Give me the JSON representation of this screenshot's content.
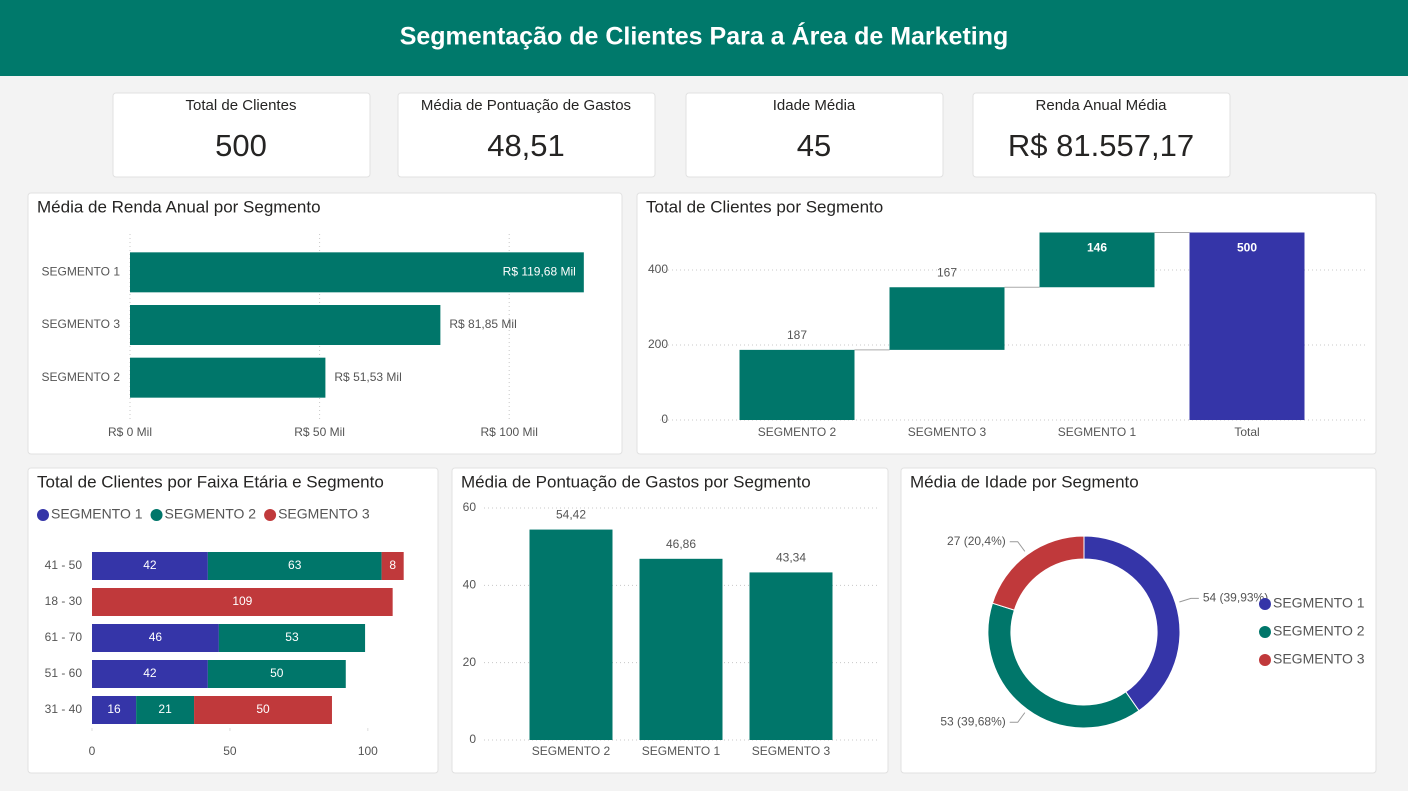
{
  "header": {
    "title": "Segmentação de Clientes Para a Área de Marketing"
  },
  "kpis": [
    {
      "label": "Total de Clientes",
      "value": "500"
    },
    {
      "label": "Média de Pontuação de Gastos",
      "value": "48,51"
    },
    {
      "label": "Idade Média",
      "value": "45"
    },
    {
      "label": "Renda Anual Média",
      "value": "R$ 81.557,17"
    }
  ],
  "chart_data": [
    {
      "type": "hbar",
      "title": "Média de Renda Anual por Segmento",
      "categories": [
        "SEGMENTO 1",
        "SEGMENTO 3",
        "SEGMENTO 2"
      ],
      "values": [
        119680,
        81850,
        51530
      ],
      "value_labels": [
        "R$ 119,68 Mil",
        "R$ 81,85 Mil",
        "R$ 51,53 Mil"
      ],
      "color": "#00766a",
      "xlim": [
        0,
        125000
      ],
      "xticks": [
        {
          "value": 0,
          "label": "R$ 0 Mil"
        },
        {
          "value": 50000,
          "label": "R$ 50 Mil"
        },
        {
          "value": 100000,
          "label": "R$ 100 Mil"
        }
      ],
      "grid": true
    },
    {
      "type": "waterfall",
      "title": "Total de Clientes por Segmento",
      "categories": [
        "SEGMENTO 2",
        "SEGMENTO 3",
        "SEGMENTO 1",
        "Total"
      ],
      "values": [
        187,
        167,
        146,
        500
      ],
      "color": "#00766a",
      "total_color": "#3535a8",
      "ylim": [
        0,
        500
      ],
      "yticks": [
        0,
        200,
        400
      ],
      "grid": true
    },
    {
      "type": "stacked-hbar",
      "title": "Total de Clientes por Faixa Etária e Segmento",
      "categories": [
        "41 - 50",
        "18 - 30",
        "61 - 70",
        "51 - 60",
        "31 - 40"
      ],
      "series": [
        {
          "name": "SEGMENTO 1",
          "color": "#3535a8",
          "values": [
            42,
            null,
            46,
            42,
            16
          ]
        },
        {
          "name": "SEGMENTO 2",
          "color": "#00766a",
          "values": [
            63,
            null,
            53,
            50,
            21
          ]
        },
        {
          "name": "SEGMENTO 3",
          "color": "#c0393b",
          "values": [
            8,
            109,
            null,
            null,
            50
          ]
        }
      ],
      "xlim": [
        0,
        120
      ],
      "xticks": [
        0,
        50,
        100
      ],
      "legend": "top"
    },
    {
      "type": "column",
      "title": "Média de Pontuação de Gastos por Segmento",
      "categories": [
        "SEGMENTO 2",
        "SEGMENTO 1",
        "SEGMENTO 3"
      ],
      "values": [
        54.42,
        46.86,
        43.34
      ],
      "value_labels": [
        "54,42",
        "46,86",
        "43,34"
      ],
      "color": "#00766a",
      "ylim": [
        0,
        60
      ],
      "yticks": [
        0,
        20,
        40,
        60
      ],
      "grid": true
    },
    {
      "type": "donut",
      "title": "Média de Idade por Segmento",
      "categories": [
        "SEGMENTO 1",
        "SEGMENTO 2",
        "SEGMENTO 3"
      ],
      "values": [
        54,
        53,
        27
      ],
      "value_labels": [
        "54 (39,93%)",
        "53 (39,68%)",
        "27 (20,4%)"
      ],
      "colors": [
        "#3535a8",
        "#00766a",
        "#c0393b"
      ],
      "legend": "right"
    }
  ]
}
